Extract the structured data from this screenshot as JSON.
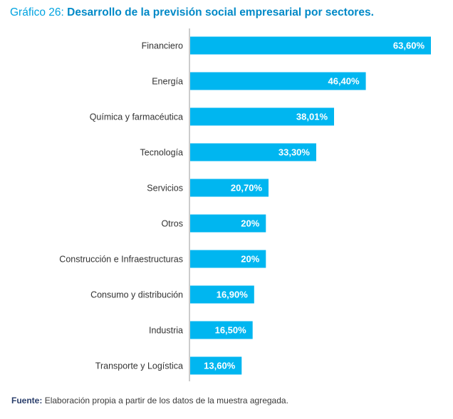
{
  "title_prefix": "Gráfico 26:",
  "title": "Desarrollo de la previsión social empresarial por sectores.",
  "source_label": "Fuente:",
  "source_text": "Elaboración propia a partir de los datos de la muestra agregada.",
  "colors": {
    "bar": "#00b6f0",
    "axis": "#9a9a9a",
    "title": "#00a3e0"
  },
  "chart_data": {
    "type": "bar",
    "orientation": "horizontal",
    "categories": [
      "Financiero",
      "Energía",
      "Química y farmacéutica",
      "Tecnología",
      "Servicios",
      "Otros",
      "Construcción e Infraestructuras",
      "Consumo y distribución",
      "Industria",
      "Transporte y Logística"
    ],
    "values": [
      63.6,
      46.4,
      38.01,
      33.3,
      20.7,
      20,
      20,
      16.9,
      16.5,
      13.6
    ],
    "labels": [
      "63,60%",
      "46,40%",
      "38,01%",
      "33,30%",
      "20,70%",
      "20%",
      "20%",
      "16,90%",
      "16,50%",
      "13,60%"
    ],
    "xlim": [
      0,
      63.6
    ],
    "grid": false,
    "legend": "none"
  }
}
